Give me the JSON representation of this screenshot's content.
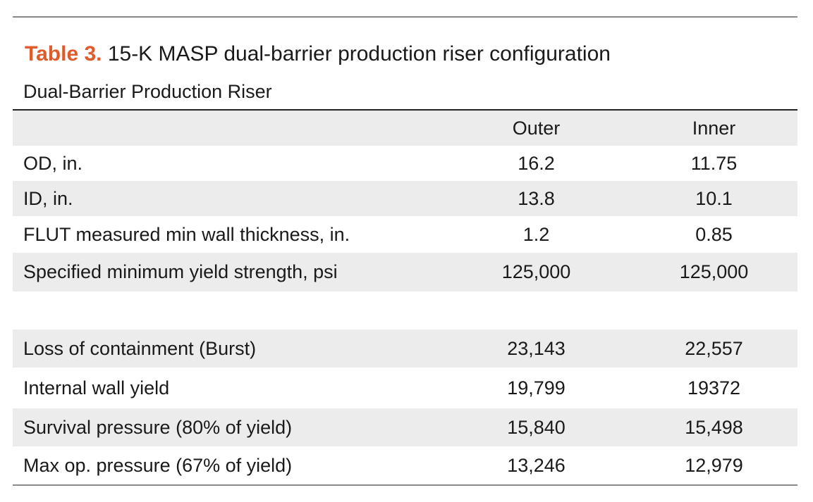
{
  "caption": {
    "label": "Table 3.",
    "text": " 15-K MASP dual-barrier production riser configuration"
  },
  "subtitle": "Dual-Barrier Production Riser",
  "columns": {
    "outer": "Outer",
    "inner": "Inner"
  },
  "rows": [
    {
      "label": "OD, in.",
      "outer": "16.2",
      "inner": "11.75"
    },
    {
      "label": "ID, in.",
      "outer": "13.8",
      "inner": "10.1"
    },
    {
      "label": "FLUT measured min wall thickness, in.",
      "outer": "1.2",
      "inner": "0.85"
    },
    {
      "label": "Specified minimum yield strength, psi",
      "outer": "125,000",
      "inner": "125,000"
    },
    {
      "label": "Loss of containment (Burst)",
      "outer": "23,143",
      "inner": "22,557"
    },
    {
      "label": "Internal wall yield",
      "outer": "19,799",
      "inner": "19372"
    },
    {
      "label": "Survival pressure (80% of yield)",
      "outer": "15,840",
      "inner": "15,498"
    },
    {
      "label": "Max op. pressure (67% of yield)",
      "outer": "13,246",
      "inner": "12,979"
    }
  ],
  "colors": {
    "accent": "#e05a2a",
    "shade": "#ececec"
  }
}
